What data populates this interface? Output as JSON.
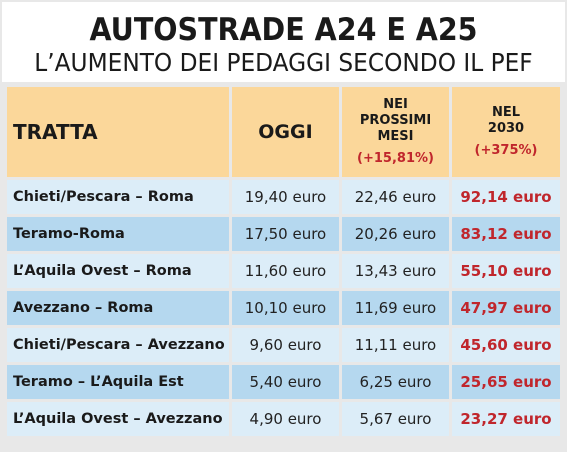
{
  "title": "AUTOSTRADE A24 E A25",
  "subtitle": "L’AUMENTO DEI PEDAGGI SECONDO IL PEF",
  "table": {
    "headers": {
      "tratta": "TRATTA",
      "oggi": "OGGI",
      "col3_line1": "NEI",
      "col3_line2": "PROSSIMI",
      "col3_line3": "MESI",
      "col3_pct": "(+15,81%)",
      "col4_line1": "NEL",
      "col4_line2": "2030",
      "col4_pct": "(+375%)"
    },
    "rows": [
      {
        "route": "Chieti/Pescara – Roma",
        "oggi": "19,40 euro",
        "prossimi": "22,46 euro",
        "nel2030": "92,14 euro"
      },
      {
        "route": "Teramo-Roma",
        "oggi": "17,50 euro",
        "prossimi": "20,26 euro",
        "nel2030": "83,12 euro"
      },
      {
        "route": "L’Aquila Ovest – Roma",
        "oggi": "11,60 euro",
        "prossimi": "13,43 euro",
        "nel2030": "55,10 euro"
      },
      {
        "route": "Avezzano – Roma",
        "oggi": "10,10 euro",
        "prossimi": "11,69 euro",
        "nel2030": "47,97 euro"
      },
      {
        "route": "Chieti/Pescara – Avezzano",
        "oggi": "9,60 euro",
        "prossimi": "11,11 euro",
        "nel2030": "45,60 euro"
      },
      {
        "route": "Teramo – L’Aquila Est",
        "oggi": "5,40 euro",
        "prossimi": "6,25 euro",
        "nel2030": "25,65 euro"
      },
      {
        "route": "L’Aquila Ovest – Avezzano",
        "oggi": "4,90 euro",
        "prossimi": "5,67 euro",
        "nel2030": "23,27 euro"
      }
    ]
  },
  "colors": {
    "header_bg": "#fbd79a",
    "row_light": "#dcedf8",
    "row_dark": "#b5d8ef",
    "accent_red": "#c0262c"
  }
}
